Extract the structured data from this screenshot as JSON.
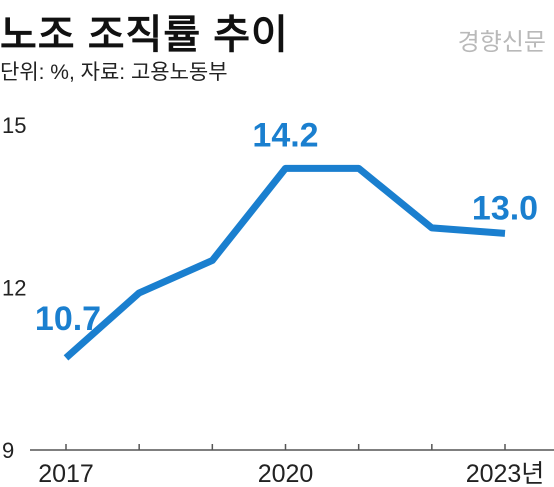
{
  "header": {
    "title": "노조 조직률 추이",
    "source_mark": "경향신문",
    "unit_source": "단위: %, 자료: 고용노동부"
  },
  "colors": {
    "series": "#1a7fcf",
    "label": "#1a7fcf",
    "axis": "#555555",
    "text": "#222222"
  },
  "chart_data": {
    "type": "line",
    "x": [
      2017,
      2018,
      2019,
      2020,
      2021,
      2022,
      2023
    ],
    "x_tick_labels": [
      {
        "x": 2017,
        "label": "2017"
      },
      {
        "x": 2020,
        "label": "2020"
      },
      {
        "x": 2023,
        "label": "2023년"
      }
    ],
    "y_ticks": [
      9,
      12,
      15
    ],
    "ylim": [
      9,
      15
    ],
    "xlim": [
      2017,
      2023
    ],
    "grid": false,
    "series": [
      {
        "values": [
          10.7,
          11.9,
          12.5,
          14.2,
          14.2,
          13.1,
          13.0
        ]
      }
    ],
    "data_labels": [
      {
        "x": 2017,
        "text": "10.7"
      },
      {
        "x": 2020,
        "text": "14.2"
      },
      {
        "x": 2023,
        "text": "13.0"
      }
    ]
  }
}
